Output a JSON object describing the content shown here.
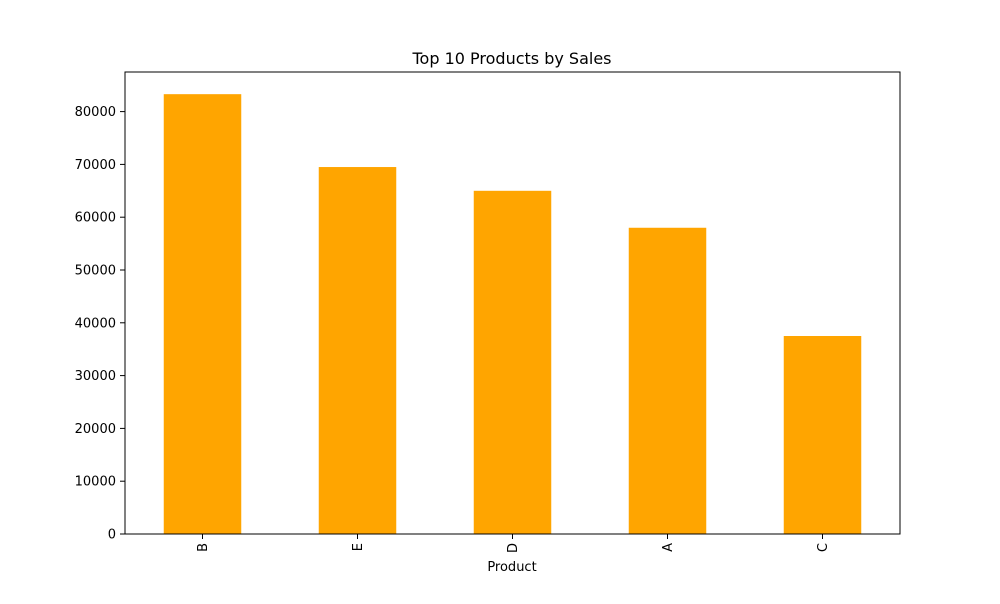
{
  "chart_data": {
    "type": "bar",
    "title": "Top 10 Products by Sales",
    "xlabel": "Product",
    "ylabel": "",
    "categories": [
      "B",
      "E",
      "D",
      "A",
      "C"
    ],
    "values": [
      83300,
      69500,
      65000,
      58000,
      37500
    ],
    "ylim": [
      0,
      87500
    ],
    "yticks": [
      0,
      10000,
      20000,
      30000,
      40000,
      50000,
      60000,
      70000,
      80000
    ],
    "bar_color": "#ffa500",
    "grid": false,
    "legend": "none",
    "xtick_rotation": "vertical"
  }
}
